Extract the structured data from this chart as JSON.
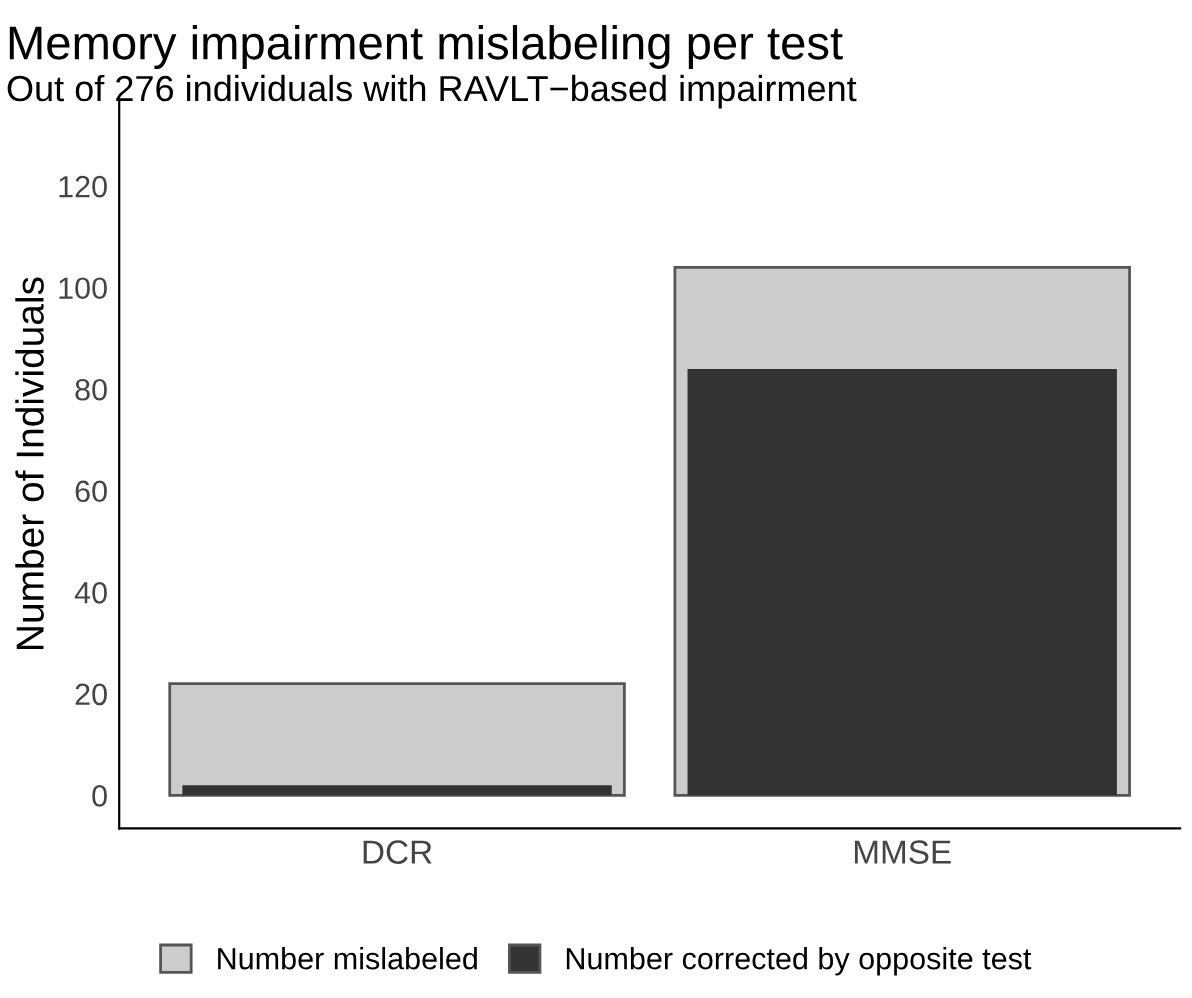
{
  "chart_data": {
    "type": "bar",
    "title": "Memory impairment mislabeling per test",
    "subtitle": "Out of 276 individuals with RAVLT−based impairment",
    "ylabel": "Number of Individuals",
    "categories": [
      "DCR",
      "MMSE"
    ],
    "series": [
      {
        "name": "Number mislabeled",
        "color": "#cccccc",
        "values": [
          22,
          104
        ]
      },
      {
        "name": "Number corrected by opposite test",
        "color": "#333333",
        "values": [
          2,
          84
        ]
      }
    ],
    "ylim": [
      -6.5,
      137
    ],
    "yticks": [
      0,
      20,
      40,
      60,
      80,
      100,
      120
    ],
    "grid": false,
    "legend": "bottom"
  }
}
